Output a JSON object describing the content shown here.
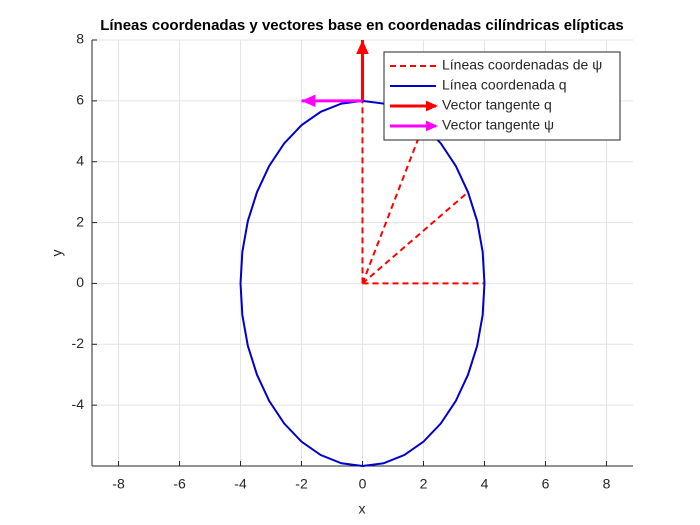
{
  "chart_data": {
    "type": "line",
    "title": "Líneas coordenadas y vectores base en coordenadas cilíndricas elípticas",
    "xlabel": "x",
    "ylabel": "y",
    "xlim": [
      -8.87,
      8.87
    ],
    "ylim": [
      -6,
      8
    ],
    "xticks": [
      -8,
      -6,
      -4,
      -2,
      0,
      2,
      4,
      6,
      8
    ],
    "yticks": [
      -4,
      -2,
      0,
      2,
      4,
      6,
      8
    ],
    "grid": true,
    "legend_position": "northeast",
    "series": [
      {
        "name": "Líneas coordenadas de ψ",
        "color": "#ff0000",
        "style": "dashed",
        "arrow": false,
        "x": [
          0,
          4,
          null,
          0,
          3.46,
          null,
          0,
          2,
          null,
          0,
          0
        ],
        "y": [
          0,
          0,
          null,
          0,
          3,
          null,
          0,
          5.2,
          null,
          0,
          6
        ]
      },
      {
        "name": "Línea coordenada q",
        "color": "#0000cc",
        "style": "solid",
        "arrow": false,
        "x": [
          4,
          3.94,
          3.76,
          3.46,
          3.06,
          2.57,
          2,
          1.37,
          0.69,
          0,
          -0.69,
          -1.37,
          -2,
          -2.57,
          -3.06,
          -3.46,
          -3.76,
          -3.94,
          -4,
          -3.94,
          -3.76,
          -3.46,
          -3.06,
          -2.57,
          -2,
          -1.37,
          -0.69,
          0,
          0.69,
          1.37,
          2,
          2.57,
          3.06,
          3.46,
          3.76,
          3.94,
          4
        ],
        "y": [
          0,
          1.04,
          2.05,
          3,
          3.86,
          4.6,
          5.2,
          5.64,
          5.91,
          6,
          5.91,
          5.64,
          5.2,
          4.6,
          3.86,
          3,
          2.05,
          1.04,
          0,
          -1.04,
          -2.05,
          -3,
          -3.86,
          -4.6,
          -5.2,
          -5.64,
          -5.91,
          -6,
          -5.91,
          -5.64,
          -5.2,
          -4.6,
          -3.86,
          -3,
          -2.05,
          -1.04,
          0
        ]
      },
      {
        "name": "Vector tangente q",
        "color": "#ff0000",
        "style": "solid",
        "arrow": true,
        "x": [
          0,
          0
        ],
        "y": [
          6,
          8
        ]
      },
      {
        "name": "Vector tangente ψ",
        "color": "#ff00ff",
        "style": "solid",
        "arrow": true,
        "x": [
          0,
          -2
        ],
        "y": [
          6,
          6
        ]
      }
    ]
  }
}
